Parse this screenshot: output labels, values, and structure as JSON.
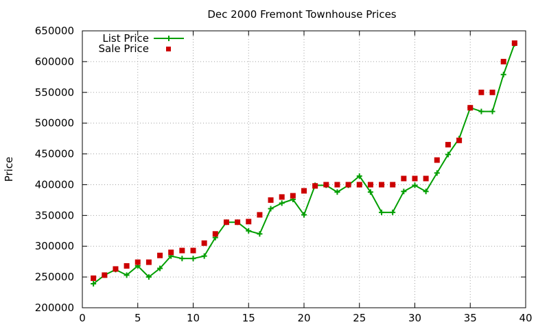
{
  "chart_data": {
    "type": "line",
    "title": "Dec 2000 Fremont Townhouse Prices",
    "xlabel": "",
    "ylabel": "Price",
    "xlim": [
      0,
      40
    ],
    "ylim": [
      200000,
      650000
    ],
    "x_ticks": [
      0,
      5,
      10,
      15,
      20,
      25,
      30,
      35,
      40
    ],
    "y_ticks": [
      200000,
      250000,
      300000,
      350000,
      400000,
      450000,
      500000,
      550000,
      600000,
      650000
    ],
    "grid": true,
    "legend_position": "top-left",
    "series": [
      {
        "name": "List Price",
        "style": "line+cross",
        "color": "#009e00",
        "x": [
          1,
          2,
          3,
          4,
          5,
          6,
          7,
          8,
          9,
          10,
          11,
          12,
          13,
          14,
          15,
          16,
          17,
          18,
          19,
          20,
          21,
          22,
          23,
          24,
          25,
          26,
          27,
          28,
          29,
          30,
          31,
          32,
          33,
          34,
          35,
          36,
          37,
          38,
          39
        ],
        "values": [
          239000,
          253000,
          262000,
          253000,
          268000,
          250000,
          264000,
          284000,
          280000,
          280000,
          284000,
          314000,
          339000,
          339000,
          325000,
          320000,
          361000,
          370000,
          376000,
          351000,
          399000,
          399000,
          388000,
          399000,
          414000,
          388000,
          355000,
          355000,
          389000,
          399000,
          389000,
          419000,
          449000,
          475000,
          525000,
          519000,
          519000,
          579000,
          629000
        ]
      },
      {
        "name": "Sale Price",
        "style": "square",
        "color": "#cc0000",
        "x": [
          1,
          2,
          3,
          4,
          5,
          6,
          7,
          8,
          9,
          10,
          11,
          12,
          13,
          14,
          15,
          16,
          17,
          18,
          19,
          20,
          21,
          22,
          23,
          24,
          25,
          26,
          27,
          28,
          29,
          30,
          31,
          32,
          33,
          34,
          35,
          36,
          37,
          38,
          39
        ],
        "values": [
          248000,
          253000,
          263000,
          268000,
          274000,
          274000,
          285000,
          290000,
          293000,
          293000,
          305000,
          320000,
          339000,
          339000,
          340000,
          351000,
          375000,
          380000,
          382000,
          390000,
          398000,
          400000,
          400000,
          400000,
          400000,
          400000,
          400000,
          400000,
          410000,
          410000,
          410000,
          440000,
          465000,
          472000,
          525000,
          550000,
          550000,
          600000,
          630000
        ]
      }
    ]
  }
}
